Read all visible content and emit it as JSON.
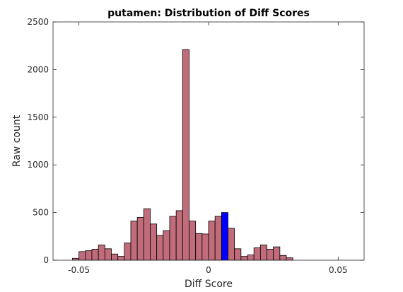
{
  "chart_data": {
    "type": "bar",
    "title": "putamen: Distribution of Diff Scores",
    "xlabel": "Diff Score",
    "ylabel": "Raw count",
    "xlim": [
      -0.06,
      0.06
    ],
    "ylim": [
      0,
      2500
    ],
    "xticks": [
      -0.05,
      0,
      0.05
    ],
    "xtick_labels": [
      "-0.05",
      "0",
      "0.05"
    ],
    "yticks": [
      0,
      500,
      1000,
      1500,
      2000,
      2500
    ],
    "ytick_labels": [
      "0",
      "500",
      "1000",
      "1500",
      "2000",
      "2500"
    ],
    "bin_width": 0.0025,
    "bin_start": -0.0525,
    "values": [
      20,
      90,
      100,
      115,
      160,
      120,
      65,
      40,
      180,
      410,
      450,
      540,
      380,
      260,
      310,
      460,
      520,
      2210,
      410,
      280,
      275,
      410,
      460,
      500,
      335,
      120,
      40,
      55,
      130,
      160,
      115,
      140,
      50,
      25
    ],
    "highlight_index": 23,
    "colors": {
      "bar": "#c06c7a",
      "highlight": "#0000ff",
      "edge": "#000000",
      "axis": "#262626"
    },
    "grid": false,
    "legend": "none"
  }
}
